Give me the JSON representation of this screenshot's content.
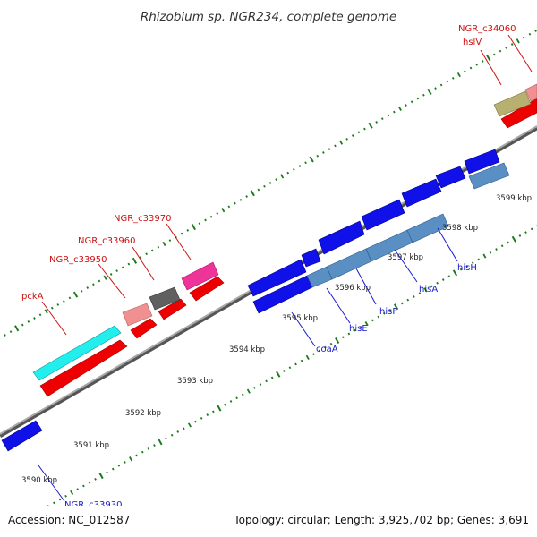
{
  "title": "Rhizobium sp. NGR234, complete genome",
  "footer": {
    "accession": "Accession: NC_012587",
    "topology": "Topology: circular; Length: 3,925,702 bp; Genes: 3,691"
  },
  "colors": {
    "backbone": "#8c8c8c",
    "tick": "#1e7a1e",
    "label_forward": "#cc1111",
    "label_reverse": "#1a1acc"
  },
  "scale_labels": [
    "3590 kbp",
    "3591 kbp",
    "3592 kbp",
    "3593 kbp",
    "3594 kbp",
    "3595 kbp",
    "3596 kbp",
    "3597 kbp",
    "3598 kbp",
    "3599 kbp"
  ],
  "features": [
    {
      "label": "NGR_c33930",
      "strand": "reverse",
      "color": "#1010e8"
    },
    {
      "label": "pckA",
      "strand": "forward",
      "color": "#22eeee"
    },
    {
      "label": "NGR_c33950",
      "strand": "forward",
      "color": "#f09090"
    },
    {
      "label": "NGR_c33960",
      "strand": "forward",
      "color": "#606060"
    },
    {
      "label": "NGR_c33970",
      "strand": "forward",
      "color": "#ee3399"
    },
    {
      "label": "coaA",
      "strand": "reverse",
      "color": "#1010e8"
    },
    {
      "label": "hisE",
      "strand": "reverse",
      "color": "#5a8fc4"
    },
    {
      "label": "hisF",
      "strand": "reverse",
      "color": "#5a8fc4"
    },
    {
      "label": "hisA",
      "strand": "reverse",
      "color": "#5a8fc4"
    },
    {
      "label": "hisH",
      "strand": "reverse",
      "color": "#5a8fc4"
    },
    {
      "label": "hslV",
      "strand": "forward",
      "color": "#b8b070"
    },
    {
      "label": "NGR_c34060",
      "strand": "forward",
      "color": "#f09090"
    }
  ]
}
